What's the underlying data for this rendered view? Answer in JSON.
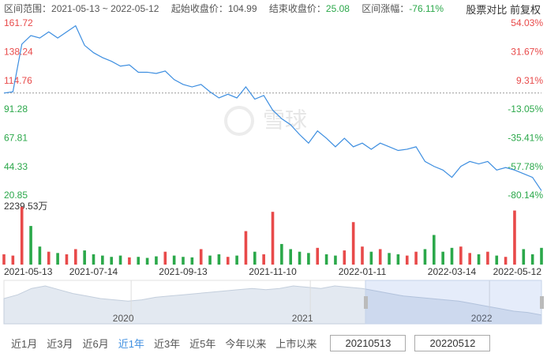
{
  "header": {
    "range_label": "区间范围：",
    "range": "2021-05-13 ~ 2022-05-12",
    "start_label": "起始收盘价：",
    "start": "104.99",
    "end_label": "结束收盘价：",
    "end": "25.08",
    "change_label": "区间涨幅：",
    "change": "-76.11%",
    "compare": "股票对比",
    "adjust": "前复权"
  },
  "watermark": "雪球",
  "chart_data": [
    {
      "type": "line",
      "color": "#3d8ee0",
      "up_color": "#e84a4a",
      "down_color": "#2ba84a",
      "baseline": 104.99,
      "values": [
        104.99,
        106,
        145,
        152,
        150,
        155,
        150,
        155,
        160,
        144,
        138,
        134,
        131,
        127,
        128,
        122,
        122,
        121,
        123,
        116,
        112,
        110,
        112,
        106,
        101,
        104,
        101,
        110,
        100,
        103,
        91,
        84,
        79,
        71,
        64,
        74,
        68,
        61,
        68,
        61,
        64,
        59,
        64,
        61,
        58,
        59,
        61,
        49,
        45,
        42,
        36,
        45,
        49,
        47,
        49,
        42,
        44,
        42,
        39,
        36,
        25.08
      ],
      "ylim": [
        20.85,
        161.72
      ],
      "yticks": [
        161.72,
        138.24,
        114.76,
        91.28,
        67.81,
        44.33,
        20.85
      ],
      "y2lim": [
        -80.14,
        54.03
      ],
      "y2ticks": [
        {
          "value": 54.03,
          "label": "54.03%"
        },
        {
          "value": 31.67,
          "label": "31.67%"
        },
        {
          "value": 9.31,
          "label": "9.31%"
        },
        {
          "value": -13.05,
          "label": "-13.05%"
        },
        {
          "value": -35.41,
          "label": "-35.41%"
        },
        {
          "value": -57.78,
          "label": "-57.78%"
        },
        {
          "value": -80.14,
          "label": "-80.14%"
        }
      ],
      "grid": false
    },
    {
      "type": "bar",
      "categories": [
        "2021-05-13",
        null,
        null,
        null,
        null,
        null,
        null,
        null,
        null,
        null,
        "2021-07-14",
        null,
        null,
        null,
        null,
        null,
        null,
        null,
        null,
        null,
        "2021-09-13",
        null,
        null,
        null,
        null,
        null,
        null,
        null,
        null,
        null,
        "2021-11-10",
        null,
        null,
        null,
        null,
        null,
        null,
        null,
        null,
        null,
        "2022-01-11",
        null,
        null,
        null,
        null,
        null,
        null,
        null,
        null,
        null,
        "2022-03-14",
        null,
        null,
        null,
        null,
        null,
        null,
        null,
        null,
        null,
        "2022-05-12"
      ],
      "values": [
        400,
        350,
        2239.53,
        1500,
        700,
        500,
        450,
        400,
        600,
        550,
        400,
        350,
        300,
        350,
        280,
        300,
        260,
        320,
        500,
        350,
        300,
        280,
        600,
        350,
        400,
        300,
        350,
        1300,
        500,
        400,
        2050,
        800,
        600,
        500,
        450,
        650,
        400,
        350,
        550,
        1650,
        700,
        500,
        600,
        450,
        400,
        350,
        500,
        600,
        1150,
        500,
        650,
        700,
        450,
        400,
        500,
        350,
        300,
        2100,
        600,
        400,
        650
      ],
      "colors": [
        "#e84a4a",
        "#e84a4a",
        "#e84a4a",
        "#2ba84a",
        "#2ba84a",
        "#e84a4a",
        "#2ba84a",
        "#e84a4a",
        "#e84a4a",
        "#2ba84a",
        "#2ba84a",
        "#2ba84a",
        "#2ba84a",
        "#2ba84a",
        "#e84a4a",
        "#2ba84a",
        "#2ba84a",
        "#2ba84a",
        "#e84a4a",
        "#2ba84a",
        "#2ba84a",
        "#2ba84a",
        "#e84a4a",
        "#2ba84a",
        "#2ba84a",
        "#e84a4a",
        "#2ba84a",
        "#e84a4a",
        "#2ba84a",
        "#e84a4a",
        "#e84a4a",
        "#2ba84a",
        "#2ba84a",
        "#2ba84a",
        "#2ba84a",
        "#e84a4a",
        "#2ba84a",
        "#2ba84a",
        "#e84a4a",
        "#e84a4a",
        "#e84a4a",
        "#2ba84a",
        "#e84a4a",
        "#2ba84a",
        "#2ba84a",
        "#e84a4a",
        "#e84a4a",
        "#2ba84a",
        "#2ba84a",
        "#2ba84a",
        "#2ba84a",
        "#e84a4a",
        "#e84a4a",
        "#2ba84a",
        "#e84a4a",
        "#2ba84a",
        "#e84a4a",
        "#e84a4a",
        "#2ba84a",
        "#2ba84a",
        "#2ba84a"
      ],
      "ylim": [
        0,
        2239.53
      ],
      "yticks": [
        {
          "value": 2239.53,
          "label": "2239.53万"
        }
      ]
    },
    {
      "type": "area",
      "color": "#e3e9f1",
      "line_color": "#c3cedc",
      "categories": [
        null,
        null,
        null,
        null,
        null,
        null,
        null,
        null,
        null,
        "2020",
        null,
        null,
        null,
        null,
        null,
        null,
        null,
        null,
        null,
        null,
        null,
        null,
        "2021",
        null,
        null,
        null,
        null,
        null,
        null,
        null,
        null,
        null,
        null,
        null,
        null,
        "2022",
        null,
        null,
        null,
        null
      ],
      "values": [
        100,
        115,
        140,
        150,
        135,
        120,
        110,
        100,
        95,
        90,
        95,
        105,
        110,
        115,
        120,
        125,
        130,
        135,
        140,
        135,
        140,
        150,
        145,
        140,
        150,
        145,
        140,
        130,
        120,
        110,
        105,
        100,
        95,
        90,
        80,
        70,
        60,
        50,
        45,
        35
      ]
    }
  ],
  "controls": {
    "buttons": [
      {
        "label": "近1月"
      },
      {
        "label": "近3月"
      },
      {
        "label": "近6月"
      },
      {
        "label": "近1年",
        "selected": true
      },
      {
        "label": "近3年"
      },
      {
        "label": "近5年"
      },
      {
        "label": "今年以来"
      },
      {
        "label": "上市以来"
      }
    ],
    "start_date": "20210513",
    "end_date": "20220512"
  }
}
